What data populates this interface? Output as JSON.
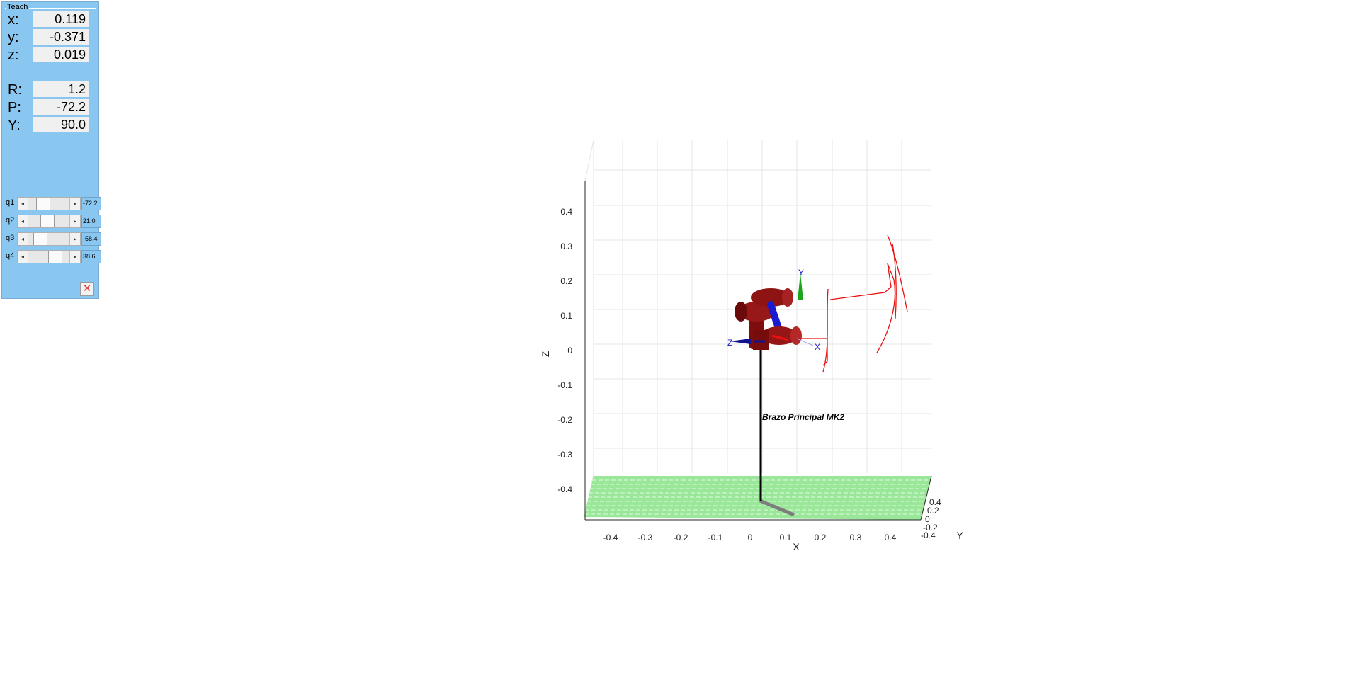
{
  "teach": {
    "title": "Teach",
    "pose": [
      {
        "label": "x:",
        "value": "0.119"
      },
      {
        "label": "y:",
        "value": "-0.371"
      },
      {
        "label": "z:",
        "value": "0.019"
      },
      {
        "label": "R:",
        "value": "1.2"
      },
      {
        "label": "P:",
        "value": "-72.2"
      },
      {
        "label": "Y:",
        "value": "90.0"
      }
    ],
    "joints": [
      {
        "label": "q1",
        "value": "-72.2",
        "position": 0.3
      },
      {
        "label": "q2",
        "value": "21.0",
        "position": 0.45
      },
      {
        "label": "q3",
        "value": "-58.4",
        "position": 0.2
      },
      {
        "label": "q4",
        "value": "38.6",
        "position": 0.72
      }
    ],
    "close_icon": "x-close-icon"
  },
  "plot": {
    "robot_name": "Brazo Principal MK2",
    "z_label": "Z",
    "x_label": "X",
    "y_label": "Y",
    "z_ticks": [
      "0.4",
      "0.3",
      "0.2",
      "0.1",
      "0",
      "-0.1",
      "-0.2",
      "-0.3",
      "-0.4"
    ],
    "x_ticks": [
      "-0.4",
      "-0.3",
      "-0.2",
      "-0.1",
      "0",
      "0.1",
      "0.2",
      "0.3",
      "0.4"
    ],
    "y_ticks": [
      "0.4",
      "0.2",
      "0",
      "-0.2",
      "-0.4"
    ],
    "frame_labels": {
      "x": "X",
      "y": "Y",
      "z": "Z"
    },
    "colors": {
      "robot": "#8b1010",
      "joint_axis": "#1a1ad0",
      "trajectory": "#e81010",
      "floor": "#39d339",
      "pedestal": "#000000"
    }
  }
}
